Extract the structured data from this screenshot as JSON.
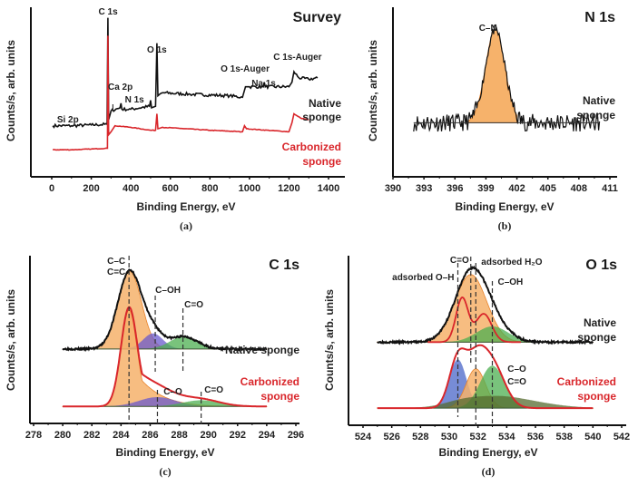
{
  "colors": {
    "native": "#111111",
    "carbonized": "#d9262b",
    "fill_orange": "#f6b26b",
    "fill_orange_dark": "#e8822a",
    "fill_purple": "#6a5acd",
    "fill_green": "#4caf50",
    "fill_olive": "#556b2f",
    "fill_blue": "#4a66c8",
    "fill_rose": "#c07070",
    "dash": "#333333"
  },
  "chart_data": [
    {
      "id": "survey",
      "type": "line",
      "title": "Survey",
      "caption": "(a)",
      "xlabel": "Binding Energy, eV",
      "ylabel": "Counts/s, arb. units",
      "xlim": [
        -100,
        1450
      ],
      "xticks": [
        0,
        200,
        400,
        600,
        800,
        1000,
        1200,
        1400
      ],
      "xtick_labels": [
        "0",
        "200",
        "400",
        "600",
        "800",
        "1000",
        "1200",
        "1400"
      ],
      "yticks_shown": false,
      "legend": [
        {
          "label_lines": [
            "Native",
            "sponge"
          ],
          "color": "native",
          "placement": "right"
        },
        {
          "label_lines": [
            "Carbonized",
            "sponge"
          ],
          "color": "carbonized",
          "placement": "right"
        }
      ],
      "annotations": [
        {
          "text": "C 1s",
          "x": 285
        },
        {
          "text": "Ca 2p",
          "x": 347
        },
        {
          "text": "N 1s",
          "x": 400
        },
        {
          "text": "Si 2p",
          "x": 100
        },
        {
          "text": "O 1s",
          "x": 532
        },
        {
          "text": "O 1s-Auger",
          "x": 978
        },
        {
          "text": "Na 1s",
          "x": 1072
        },
        {
          "text": "C 1s-Auger",
          "x": 1225
        }
      ],
      "series": [
        {
          "name": "Native sponge",
          "color": "native",
          "points": [
            [
              5,
              0.26
            ],
            [
              100,
              0.26
            ],
            [
              200,
              0.265
            ],
            [
              280,
              0.27
            ],
            [
              284,
              0.98
            ],
            [
              288,
              0.3
            ],
            [
              300,
              0.36
            ],
            [
              345,
              0.38
            ],
            [
              350,
              0.41
            ],
            [
              355,
              0.37
            ],
            [
              400,
              0.37
            ],
            [
              495,
              0.39
            ],
            [
              500,
              0.43
            ],
            [
              505,
              0.38
            ],
            [
              525,
              0.39
            ],
            [
              532,
              0.81
            ],
            [
              537,
              0.46
            ],
            [
              560,
              0.48
            ],
            [
              700,
              0.47
            ],
            [
              900,
              0.46
            ],
            [
              965,
              0.45
            ],
            [
              980,
              0.52
            ],
            [
              1000,
              0.52
            ],
            [
              1070,
              0.52
            ],
            [
              1075,
              0.55
            ],
            [
              1080,
              0.52
            ],
            [
              1200,
              0.52
            ],
            [
              1215,
              0.55
            ],
            [
              1225,
              0.62
            ],
            [
              1250,
              0.58
            ],
            [
              1300,
              0.57
            ],
            [
              1345,
              0.58
            ]
          ]
        },
        {
          "name": "Carbonized sponge",
          "color": "carbonized",
          "points": [
            [
              5,
              0.1
            ],
            [
              100,
              0.1
            ],
            [
              200,
              0.105
            ],
            [
              282,
              0.11
            ],
            [
              284,
              0.86
            ],
            [
              288,
              0.2
            ],
            [
              300,
              0.22
            ],
            [
              320,
              0.26
            ],
            [
              400,
              0.25
            ],
            [
              500,
              0.23
            ],
            [
              525,
              0.23
            ],
            [
              532,
              0.34
            ],
            [
              537,
              0.24
            ],
            [
              560,
              0.25
            ],
            [
              800,
              0.23
            ],
            [
              965,
              0.22
            ],
            [
              975,
              0.26
            ],
            [
              985,
              0.24
            ],
            [
              1200,
              0.22
            ],
            [
              1215,
              0.28
            ],
            [
              1225,
              0.34
            ],
            [
              1260,
              0.31
            ],
            [
              1300,
              0.3
            ]
          ]
        }
      ]
    },
    {
      "id": "n1s",
      "type": "area",
      "title": "N 1s",
      "caption": "(b)",
      "xlabel": "Binding Energy, eV",
      "ylabel": "Counts/s, arb. units",
      "xlim": [
        390,
        411.5
      ],
      "xticks": [
        390,
        393,
        396,
        399,
        402,
        405,
        408,
        411
      ],
      "xtick_labels": [
        "390",
        "393",
        "396",
        "399",
        "402",
        "405",
        "408",
        "411"
      ],
      "yticks_shown": false,
      "legend": [
        {
          "label_lines": [
            "Native",
            "sponge"
          ],
          "color": "native",
          "placement": "right"
        }
      ],
      "annotations": [
        {
          "text": "C–N",
          "x": 399.2
        }
      ],
      "baseline": 0.0,
      "fitted_peaks": [
        {
          "label": "C–N",
          "center": 399.9,
          "fwhm": 2.2,
          "height": 0.85,
          "fill": "fill_orange",
          "range": [
            397.3,
            402.0
          ]
        }
      ],
      "series": [
        {
          "name": "Native sponge",
          "color": "native",
          "noise_amplitude": 0.08,
          "x_range": [
            392,
            410
          ]
        }
      ]
    },
    {
      "id": "c1s",
      "type": "area",
      "title": "C 1s",
      "caption": "(c)",
      "xlabel": "Binding Energy, eV",
      "ylabel": "Counts/s, arb. units",
      "xlim": [
        278,
        296
      ],
      "xticks": [
        278,
        280,
        282,
        284,
        286,
        288,
        290,
        292,
        294,
        296
      ],
      "xtick_labels": [
        "278",
        "280",
        "282",
        "284",
        "286",
        "288",
        "290",
        "292",
        "294",
        "296"
      ],
      "yticks_shown": false,
      "legend": [
        {
          "label_lines": [
            "Native sponge"
          ],
          "color": "native",
          "placement": "right"
        },
        {
          "label_lines": [
            "Carbonized",
            "sponge"
          ],
          "color": "carbonized",
          "placement": "right"
        }
      ],
      "annotations": [
        {
          "text": "C–C",
          "x": 284.55,
          "line2": "C=C"
        },
        {
          "text": "C–OH",
          "x": 286.35
        },
        {
          "text": "C=O",
          "x": 288.25
        },
        {
          "text": "C–O",
          "x": 286.5
        },
        {
          "text": "C=O",
          "x": 289.5
        }
      ],
      "dashed_lines": [
        284.55,
        286.35,
        288.25,
        286.5,
        289.5
      ],
      "series": [
        {
          "name": "Native sponge",
          "color": "native",
          "x_range": [
            280,
            294
          ],
          "baseline": 0.45,
          "peaks": [
            {
              "label": "C–C/C=C",
              "center": 284.6,
              "fwhm": 1.9,
              "height": 0.5,
              "fill": "fill_orange"
            },
            {
              "label": "C–OH",
              "center": 286.2,
              "fwhm": 1.6,
              "height": 0.1,
              "fill": "fill_purple"
            },
            {
              "label": "C=O",
              "center": 288.3,
              "fwhm": 2.2,
              "height": 0.08,
              "fill": "fill_green"
            }
          ]
        },
        {
          "name": "Carbonized sponge",
          "color": "carbonized",
          "x_range": [
            280,
            294
          ],
          "baseline": 0.08,
          "peaks": [
            {
              "label": "C–C/C=C",
              "center": 284.55,
              "fwhm": 1.3,
              "height": 0.62,
              "fill": "fill_orange",
              "tail": 1.8
            },
            {
              "label": "C–O",
              "center": 286.5,
              "fwhm": 3.0,
              "height": 0.06,
              "fill": "fill_purple"
            },
            {
              "label": "C=O",
              "center": 289.5,
              "fwhm": 3.0,
              "height": 0.04,
              "fill": "fill_green"
            }
          ]
        }
      ]
    },
    {
      "id": "o1s",
      "type": "area",
      "title": "O 1s",
      "caption": "(d)",
      "xlabel": "Binding Energy, eV",
      "ylabel": "Counts/s, arb. units",
      "xlim": [
        523,
        542
      ],
      "xticks": [
        524,
        526,
        528,
        530,
        532,
        534,
        536,
        538,
        540,
        542
      ],
      "xtick_labels": [
        "524",
        "526",
        "528",
        "530",
        "532",
        "534",
        "536",
        "538",
        "540",
        "542"
      ],
      "yticks_shown": false,
      "legend": [
        {
          "label_lines": [
            "Native",
            "sponge"
          ],
          "color": "native",
          "placement": "right"
        },
        {
          "label_lines": [
            "Carbonized",
            "sponge"
          ],
          "color": "carbonized",
          "placement": "right"
        }
      ],
      "annotations": [
        {
          "text": "adsorbed O–H",
          "x": 530.6
        },
        {
          "text": "C=O",
          "x": 531.5
        },
        {
          "text": "adsorbed H₂O",
          "x": 531.85
        },
        {
          "text": "C–OH",
          "x": 533.0
        },
        {
          "text": "C–O",
          "x": 534.2,
          "line2": "C=O"
        }
      ],
      "dashed_lines": [
        530.6,
        531.5,
        531.85,
        533.0
      ],
      "series": [
        {
          "name": "Native sponge",
          "color": "native",
          "x_range": [
            525,
            540
          ],
          "baseline": 0.5,
          "peaks": [
            {
              "label": "C=O",
              "center": 531.5,
              "fwhm": 2.6,
              "height": 0.43,
              "fill": "fill_orange"
            },
            {
              "label": "C–OH",
              "center": 533.0,
              "fwhm": 2.6,
              "height": 0.1,
              "fill": "fill_green"
            }
          ],
          "inner_envelope": {
            "color": "carbonized",
            "peaks": [
              [
                530.9,
                0.28,
                1.0
              ],
              [
                532.4,
                0.18,
                1.3
              ]
            ]
          }
        },
        {
          "name": "Carbonized sponge",
          "color": "carbonized",
          "x_range": [
            525,
            540
          ],
          "baseline": 0.08,
          "peaks": [
            {
              "label": "adsorbed O–H",
              "center": 530.6,
              "fwhm": 1.4,
              "height": 0.31,
              "fill": "fill_blue"
            },
            {
              "label": "adsorbed H₂O",
              "center": 531.85,
              "fwhm": 1.6,
              "height": 0.25,
              "fill": "fill_orange"
            },
            {
              "label": "C–OH",
              "center": 533.0,
              "fwhm": 2.0,
              "height": 0.27,
              "fill": "fill_green"
            },
            {
              "label": "background",
              "center": 532.0,
              "fwhm": 5.5,
              "height": 0.08,
              "fill": "fill_olive"
            }
          ]
        }
      ]
    }
  ]
}
